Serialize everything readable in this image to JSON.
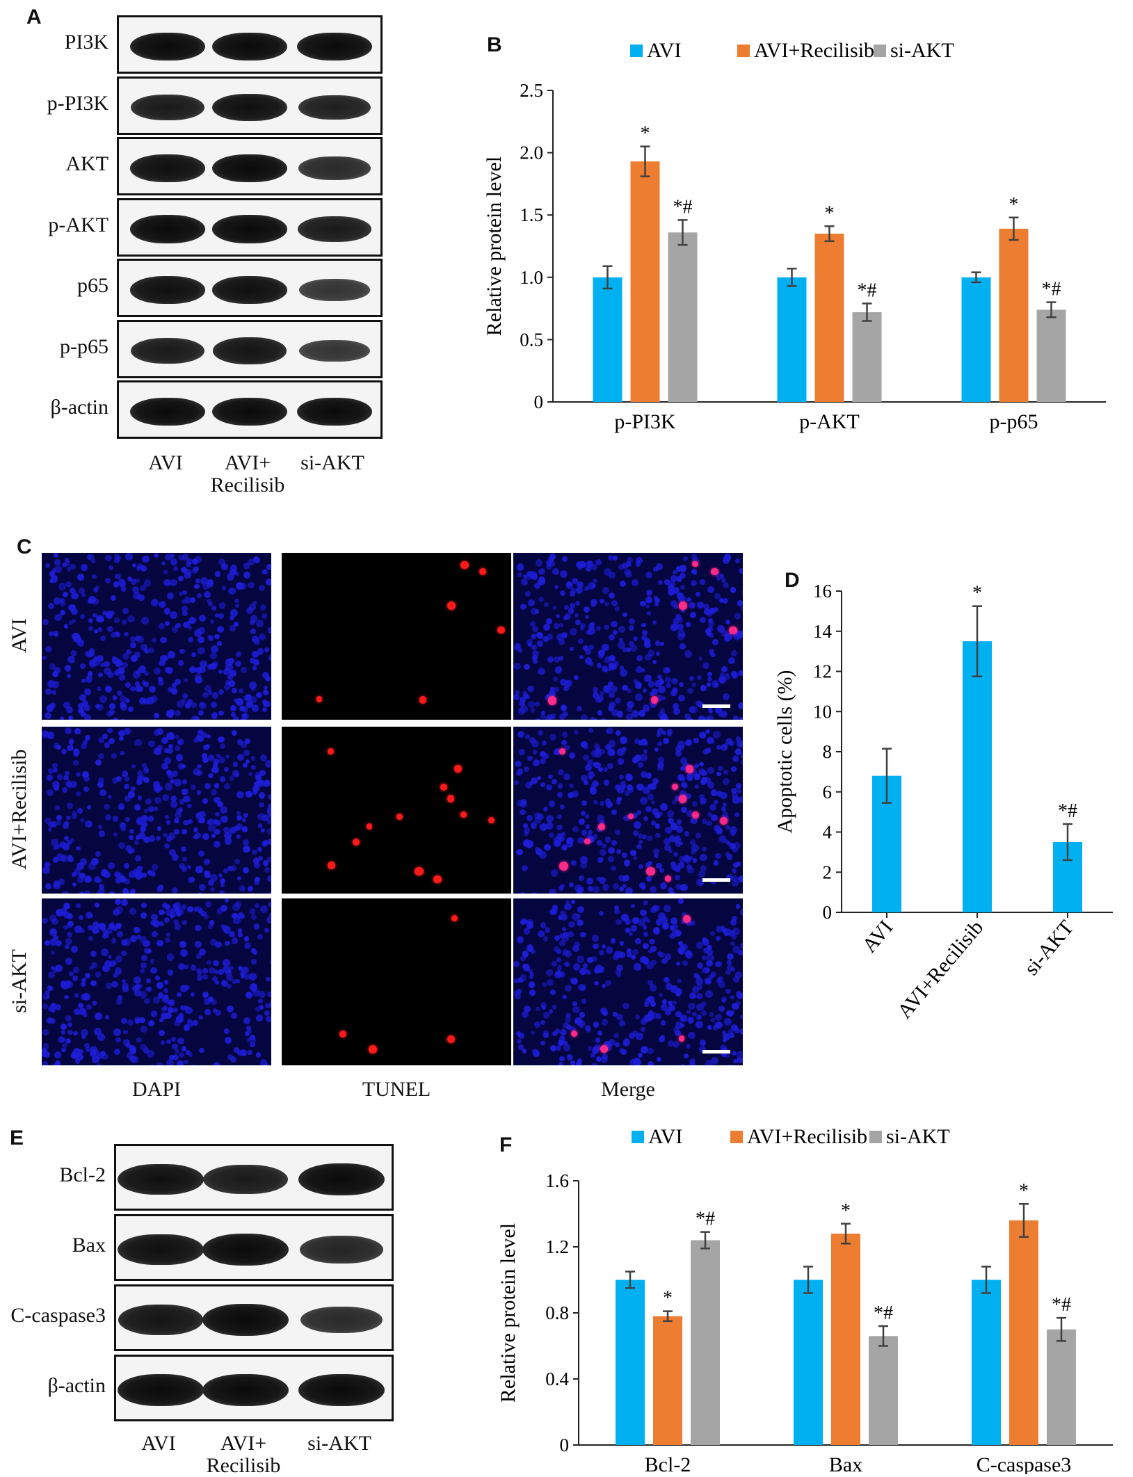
{
  "panels": {
    "A": "A",
    "B": "B",
    "C": "C",
    "D": "D",
    "E": "E",
    "F": "F"
  },
  "blot_a": {
    "rows": [
      "PI3K",
      "p-PI3K",
      "AKT",
      "p-AKT",
      "p65",
      "p-p65",
      "β-actin"
    ],
    "lanes": [
      "AVI",
      "AVI+\nRecilisib",
      "si-AKT"
    ],
    "band_intensity": [
      [
        1.0,
        1.0,
        1.0
      ],
      [
        0.85,
        0.95,
        0.8
      ],
      [
        0.95,
        1.0,
        0.7
      ],
      [
        1.0,
        1.0,
        0.85
      ],
      [
        0.95,
        0.95,
        0.6
      ],
      [
        0.85,
        0.9,
        0.6
      ],
      [
        1.0,
        1.0,
        1.0
      ]
    ]
  },
  "blot_e": {
    "rows": [
      "Bcl-2",
      "Bax",
      "C-caspase3",
      "β-actin"
    ],
    "lanes": [
      "AVI",
      "AVI+\nRecilisib",
      "si-AKT"
    ],
    "band_intensity": [
      [
        0.95,
        0.85,
        1.0
      ],
      [
        0.95,
        1.0,
        0.75
      ],
      [
        0.9,
        1.0,
        0.7
      ],
      [
        1.0,
        1.0,
        1.0
      ]
    ]
  },
  "microscopy": {
    "rows": [
      "AVI",
      "AVI+Recilisib",
      "si-AKT"
    ],
    "columns": [
      "DAPI",
      "TUNEL",
      "Merge"
    ],
    "colors": {
      "dapi": "#1d1dd6",
      "tunel": "#ff1a1a",
      "merge_dot": "#ff2a8a"
    }
  },
  "colors": {
    "avi": "#00b0f0",
    "recilisib": "#ed7d31",
    "siakt": "#a5a5a5",
    "errorbar": "#404040"
  },
  "chart_data": [
    {
      "id": "B",
      "type": "bar",
      "categories": [
        "p-PI3K",
        "p-AKT",
        "p-p65"
      ],
      "series": [
        {
          "name": "AVI",
          "values": [
            1.0,
            1.0,
            1.0
          ],
          "errors": [
            0.09,
            0.07,
            0.04
          ],
          "annotations": [
            "",
            "",
            ""
          ]
        },
        {
          "name": "AVI+Recilisib",
          "values": [
            1.93,
            1.35,
            1.39
          ],
          "errors": [
            0.12,
            0.06,
            0.09
          ],
          "annotations": [
            "*",
            "*",
            "*"
          ]
        },
        {
          "name": "si-AKT",
          "values": [
            1.36,
            0.72,
            0.74
          ],
          "errors": [
            0.1,
            0.07,
            0.06
          ],
          "annotations": [
            "*#",
            "*#",
            "*#"
          ]
        }
      ],
      "ylabel": "Relative protein level",
      "xlabel": "",
      "ylim": [
        0,
        2.5
      ],
      "yticks": [
        "0",
        "0.5",
        "1.0",
        "1.5",
        "2.0",
        "2.5"
      ],
      "legend": "top"
    },
    {
      "id": "D",
      "type": "bar",
      "categories": [
        "AVI",
        "AVI+Recilisib",
        "si-AKT"
      ],
      "series": [
        {
          "name": "",
          "values": [
            6.8,
            13.5,
            3.5
          ],
          "errors": [
            1.35,
            1.75,
            0.9
          ],
          "annotations": [
            "",
            "*",
            "*#"
          ]
        }
      ],
      "ylabel": "Apoptotic cells (%)",
      "xlabel": "",
      "ylim": [
        0,
        16
      ],
      "yticks": [
        "0",
        "2",
        "4",
        "6",
        "8",
        "10",
        "12",
        "14",
        "16"
      ]
    },
    {
      "id": "F",
      "type": "bar",
      "categories": [
        "Bcl-2",
        "Bax",
        "C-caspase3"
      ],
      "series": [
        {
          "name": "AVI",
          "values": [
            1.0,
            1.0,
            1.0
          ],
          "errors": [
            0.05,
            0.08,
            0.08
          ],
          "annotations": [
            "",
            "",
            ""
          ]
        },
        {
          "name": "AVI+Recilisib",
          "values": [
            0.78,
            1.28,
            1.36
          ],
          "errors": [
            0.03,
            0.06,
            0.1
          ],
          "annotations": [
            "*",
            "*",
            "*"
          ]
        },
        {
          "name": "si-AKT",
          "values": [
            1.24,
            0.66,
            0.7
          ],
          "errors": [
            0.05,
            0.06,
            0.07
          ],
          "annotations": [
            "*#",
            "*#",
            "*#"
          ]
        }
      ],
      "ylabel": "Relative protein level",
      "xlabel": "",
      "ylim": [
        0,
        1.6
      ],
      "yticks": [
        "0",
        "0.4",
        "0.8",
        "1.2",
        "1.6"
      ],
      "legend": "top"
    }
  ]
}
